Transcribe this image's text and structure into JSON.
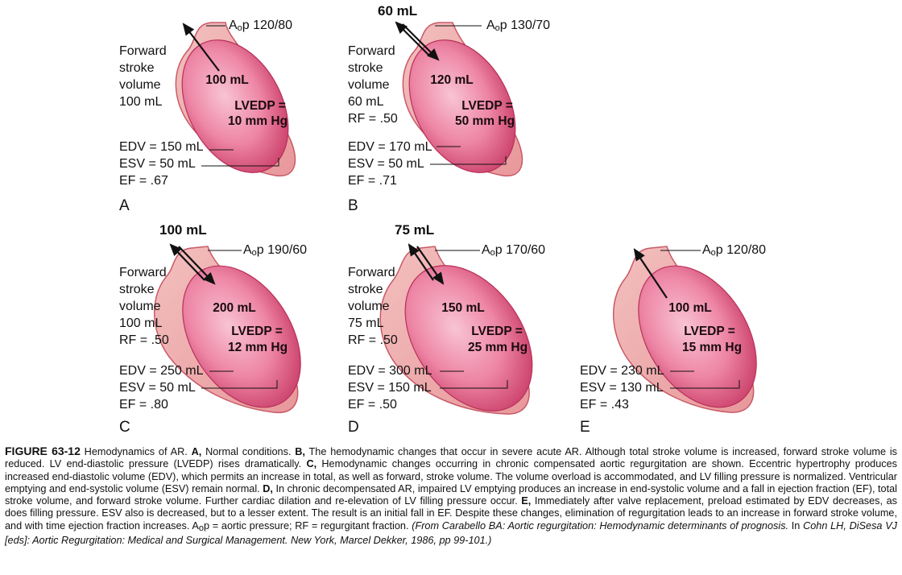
{
  "panels": [
    {
      "letter": "A",
      "aop_prefix": "A",
      "aop_sub": "o",
      "aop_suffix": "p 120/80",
      "forward": [
        "Forward",
        "stroke",
        "volume",
        "100 mL"
      ],
      "cavity_volume": "100 mL",
      "lvedp_label": "LVEDP =",
      "lvedp_value": "10 mm Hg",
      "edv": "EDV = 150 mL",
      "esv": "ESV = 50 mL",
      "ef": "EF = .67",
      "regurg": ""
    },
    {
      "letter": "B",
      "aop_prefix": "A",
      "aop_sub": "o",
      "aop_suffix": "p 130/70",
      "forward": [
        "Forward",
        "stroke",
        "volume",
        "60 mL",
        "RF = .50"
      ],
      "cavity_volume": "120 mL",
      "lvedp_label": "LVEDP =",
      "lvedp_value": "50 mm Hg",
      "edv": "EDV = 170 mL",
      "esv": "ESV = 50 mL",
      "ef": "EF = .71",
      "regurg": "60 mL"
    },
    {
      "letter": "C",
      "aop_prefix": "A",
      "aop_sub": "o",
      "aop_suffix": "p 190/60",
      "forward": [
        "Forward",
        "stroke",
        "volume",
        "100 mL",
        "RF = .50"
      ],
      "cavity_volume": "200 mL",
      "lvedp_label": "LVEDP =",
      "lvedp_value": "12 mm Hg",
      "edv": "EDV = 250 mL",
      "esv": "ESV = 50 mL",
      "ef": "EF = .80",
      "regurg": "100 mL"
    },
    {
      "letter": "D",
      "aop_prefix": "A",
      "aop_sub": "o",
      "aop_suffix": "p 170/60",
      "forward": [
        "Forward",
        "stroke",
        "volume",
        "75 mL",
        "RF = .50"
      ],
      "cavity_volume": "150 mL",
      "lvedp_label": "LVEDP =",
      "lvedp_value": "25 mm Hg",
      "edv": "EDV = 300 mL",
      "esv": "ESV = 150 mL",
      "ef": "EF = .50",
      "regurg": "75 mL"
    },
    {
      "letter": "E",
      "aop_prefix": "A",
      "aop_sub": "o",
      "aop_suffix": "p 120/80",
      "forward": [],
      "cavity_volume": "100 mL",
      "lvedp_label": "LVEDP =",
      "lvedp_value": "15 mm Hg",
      "edv": "EDV = 230 mL",
      "esv": "ESV = 130 mL",
      "ef": "EF = .43",
      "regurg": ""
    }
  ],
  "caption": {
    "head": "FIGURE 63-12",
    "t1": " Hemodynamics of AR. ",
    "bA": "A,",
    "t2": " Normal conditions. ",
    "bB": "B,",
    "t3": " The hemodynamic changes that occur in severe acute AR. Although total stroke volume is increased, forward stroke volume is reduced. LV end-diastolic pressure (LVEDP) rises dramatically. ",
    "bC": "C,",
    "t4": " Hemodynamic changes occurring in chronic compensated aortic regurgitation are shown. Eccentric hypertrophy produces increased end-diastolic volume (EDV), which permits an increase in total, as well as forward, stroke volume. The volume overload is accommodated, and LV filling pressure is normalized. Ventricular emptying and end-systolic volume (ESV) remain normal. ",
    "bD": "D,",
    "t5": " In chronic decompensated AR, impaired LV emptying produces an increase in end-systolic volume and a fall in ejection fraction (EF), total stroke volume, and forward stroke volume. Further cardiac dilation and re-elevation of LV filling pressure occur. ",
    "bE": "E,",
    "t6": " Immediately after valve replacement, preload estimated by EDV decreases, as does filling pressure. ESV also is decreased, but to a lesser extent. The result is an initial fall in EF. Despite these changes, elimination of regurgitation leads to an increase in forward stroke volume, and with time ejection fraction increases. A",
    "t6sub": "o",
    "t7": "p = aortic pressure; RF = regurgitant fraction. ",
    "i1": "(From Carabello BA: Aortic regurgitation: Hemodynamic determinants of prognosis.",
    "t8": " In ",
    "i2": "Cohn LH, DiSesa VJ [eds]: Aortic Regurgitation: Medical and Surgical Management. New York, Marcel Dekker, 1986, pp 99-101.)"
  },
  "colors": {
    "wall": "#eaa0a3",
    "wall_edge": "#c85a67",
    "cavity_outer": "#d9527c",
    "cavity_inner": "#f6b7ca",
    "line": "#111111"
  }
}
